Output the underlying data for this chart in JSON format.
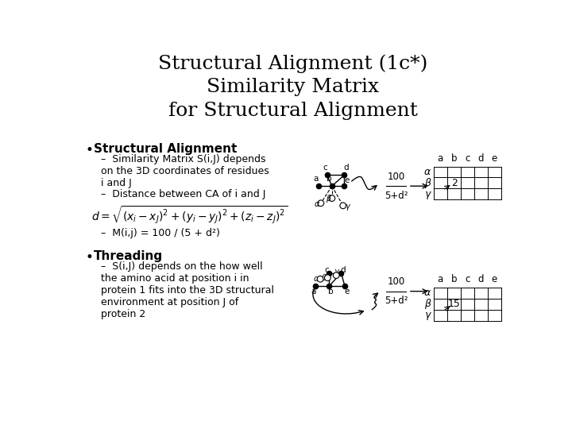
{
  "title": "Structural Alignment (1c*)\nSimilarity Matrix\nfor Structural Alignment",
  "title_fontsize": 18,
  "bg_color": "#ffffff",
  "bullet1_bold": "Structural Alignment",
  "bullet1_sub1": "Similarity Matrix S(i,J) depends\non the 3D coordinates of residues\ni and J",
  "bullet1_sub2": "Distance between CA of i and J",
  "formula": "$d = \\sqrt{(x_i - x_J)^2 + (y_i - y_J)^2 + (z_i - z_J)^2}$",
  "bullet1_sub3": "M(i,j) = 100 / (5 + d²)",
  "bullet2_bold": "Threading",
  "bullet2_sub1": "S(i,J) depends on the how well\nthe amino acid at position i in\nprotein 1 fits into the 3D structural\nenvironment at position J of\nprotein 2",
  "matrix_cols": [
    "a",
    "b",
    "c",
    "d",
    "e"
  ],
  "matrix_rows": [
    "α",
    "β",
    "γ"
  ],
  "matrix_val1": {
    "row": 1,
    "col": 1,
    "val": "2"
  },
  "matrix_val2": {
    "row": 1,
    "col": 1,
    "val": "15"
  },
  "text_color": "#000000"
}
